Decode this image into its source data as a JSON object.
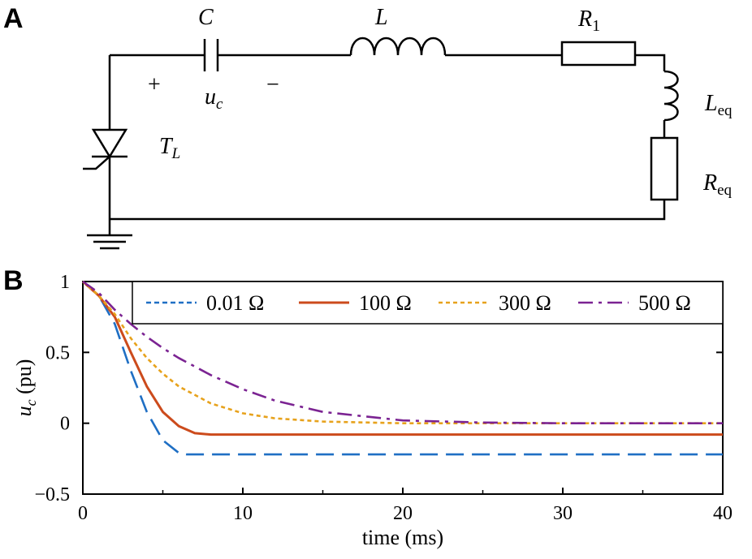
{
  "panels": {
    "a": "A",
    "b": "B"
  },
  "circuit": {
    "capacitor": "C",
    "inductor": "L",
    "resistor1": "R",
    "resistor1_sub": "1",
    "plus": "+",
    "minus": "−",
    "cap_voltage": "u",
    "cap_voltage_sub": "c",
    "thyristor": "T",
    "thyristor_sub": "L",
    "l_eq": "L",
    "l_eq_sub": "eq",
    "r_eq": "R",
    "r_eq_sub": "eq"
  },
  "chart_data": {
    "type": "line",
    "xlabel": "time (ms)",
    "ylabel_main": "u",
    "ylabel_sub": "c",
    "ylabel_rest": " (pu)",
    "xlim": [
      0,
      40
    ],
    "ylim": [
      -0.5,
      1
    ],
    "xticks": [
      0,
      10,
      20,
      30,
      40
    ],
    "yticks": [
      1,
      0.5,
      0,
      -0.5
    ],
    "ytick_labels": [
      "1",
      "0.5",
      "0",
      "−0.5"
    ],
    "grid": false,
    "legend_position": "top",
    "series": [
      {
        "name": "0.01 Ω",
        "color": "#1f6fc4",
        "style": "dashed",
        "x": [
          0,
          1,
          2,
          3,
          4,
          5,
          6,
          6.5,
          8,
          10,
          20,
          30,
          40
        ],
        "y": [
          1,
          0.9,
          0.7,
          0.37,
          0.08,
          -0.12,
          -0.21,
          -0.22,
          -0.22,
          -0.22,
          -0.22,
          -0.22,
          -0.22
        ]
      },
      {
        "name": "100 Ω",
        "color": "#cc4b1c",
        "style": "solid",
        "x": [
          0,
          1,
          2,
          3,
          4,
          5,
          6,
          7,
          8,
          10,
          20,
          30,
          40
        ],
        "y": [
          1,
          0.9,
          0.75,
          0.5,
          0.26,
          0.08,
          -0.02,
          -0.07,
          -0.08,
          -0.08,
          -0.08,
          -0.08,
          -0.08
        ]
      },
      {
        "name": "300 Ω",
        "color": "#e7a21c",
        "style": "dotted",
        "x": [
          0,
          1,
          2,
          3,
          4,
          5,
          6,
          8,
          10,
          12,
          15,
          20,
          30,
          40
        ],
        "y": [
          1,
          0.9,
          0.77,
          0.6,
          0.46,
          0.35,
          0.26,
          0.14,
          0.07,
          0.035,
          0.012,
          0.0,
          0.0,
          0.0
        ]
      },
      {
        "name": "500 Ω",
        "color": "#7b2392",
        "style": "dashdot",
        "x": [
          0,
          1,
          2,
          3,
          4,
          5,
          6,
          8,
          10,
          12,
          15,
          20,
          25,
          30,
          40
        ],
        "y": [
          1,
          0.92,
          0.8,
          0.7,
          0.61,
          0.53,
          0.46,
          0.34,
          0.24,
          0.16,
          0.08,
          0.02,
          0.005,
          0.0,
          0.0
        ]
      }
    ]
  }
}
